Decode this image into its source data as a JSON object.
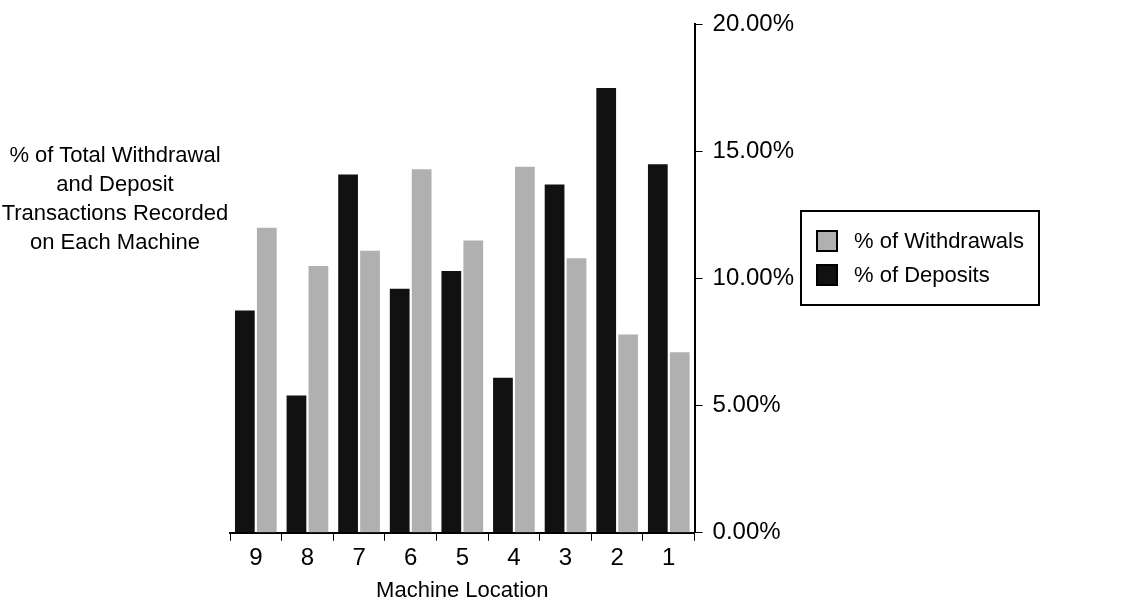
{
  "chart_data": {
    "type": "bar",
    "xlabel": "Machine Location",
    "ylabel": "% of Total Withdrawal and Deposit Transactions Recorded on Each Machine",
    "categories": [
      "9",
      "8",
      "7",
      "6",
      "5",
      "4",
      "3",
      "2",
      "1"
    ],
    "series": [
      {
        "name": "% of Deposits",
        "color": "#111111",
        "values": [
          8.75,
          5.4,
          14.1,
          9.6,
          10.3,
          6.1,
          13.7,
          17.5,
          14.5
        ]
      },
      {
        "name": "% of Withdrawals",
        "color": "#b0b0b0",
        "values": [
          12.0,
          10.5,
          11.1,
          14.3,
          11.5,
          14.4,
          10.8,
          7.8,
          7.1
        ]
      }
    ],
    "ylim": [
      0,
      20
    ],
    "yticks": [
      {
        "value": 0,
        "label": "0.00%"
      },
      {
        "value": 5,
        "label": "5.00%"
      },
      {
        "value": 10,
        "label": "10.00%"
      },
      {
        "value": 15,
        "label": "15.00%"
      },
      {
        "value": 20,
        "label": "20.00%"
      }
    ],
    "grid": false,
    "legend": "right"
  }
}
